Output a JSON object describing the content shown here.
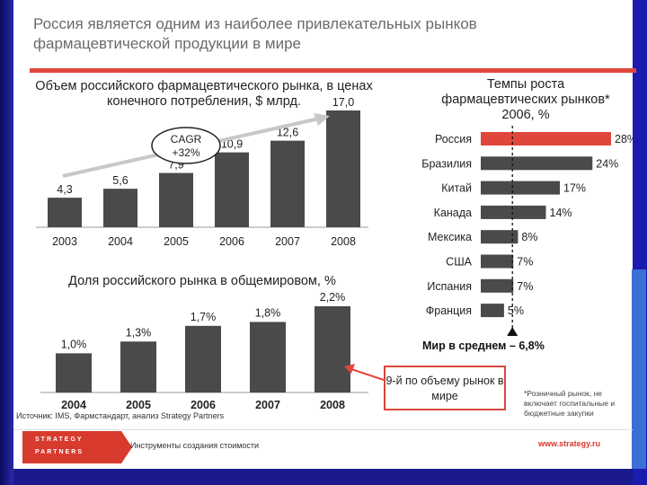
{
  "slide": {
    "title": "Россия является одним из наиболее привлекательных рынков фармацевтической продукции в мире",
    "source": "Источник: IMS, Фармстандарт, анализ Strategy Partners",
    "footnote": "*Розничный рынок, не включает госпитальные и бюджетные закупки",
    "footer_text": "Инструменты создания стоимости",
    "footer_url": "www.strategy.ru",
    "logo_line1": "STRATEGY",
    "logo_line2": "PARTNERS",
    "cagr": "CAGR +32%",
    "callout": "9-й по объему рынок в мире",
    "world_avg": "Мир в среднем – 6,8%",
    "colors": {
      "bar": "#4a4a4a",
      "accent": "#e0473c",
      "text": "#222222"
    }
  },
  "chart_data": [
    {
      "type": "bar",
      "title": "Объем российского фармацевтического рынка, в ценах конечного потребления, $ млрд.",
      "categories": [
        "2003",
        "2004",
        "2005",
        "2006",
        "2007",
        "2008"
      ],
      "values": [
        4.3,
        5.6,
        7.9,
        10.9,
        12.6,
        17.0
      ],
      "labels": [
        "4,3",
        "5,6",
        "7,9",
        "10,9",
        "12,6",
        "17,0"
      ],
      "ylim": [
        0,
        17
      ]
    },
    {
      "type": "bar",
      "title": "Доля российского рынка в общемировом, %",
      "categories": [
        "2004",
        "2005",
        "2006",
        "2007",
        "2008"
      ],
      "values": [
        1.0,
        1.3,
        1.7,
        1.8,
        2.2
      ],
      "labels": [
        "1,0%",
        "1,3%",
        "1,7%",
        "1,8%",
        "2,2%"
      ],
      "ylim": [
        0,
        2.2
      ]
    },
    {
      "type": "bar",
      "orientation": "horizontal",
      "title": "Темпы роста фармацевтических рынков* 2006, %",
      "categories": [
        "Россия",
        "Бразилия",
        "Китай",
        "Канада",
        "Мексика",
        "США",
        "Испания",
        "Франция"
      ],
      "values": [
        28,
        24,
        17,
        14,
        8,
        7,
        7,
        5
      ],
      "labels": [
        "28%",
        "24%",
        "17%",
        "14%",
        "8%",
        "7%",
        "7%",
        "5%"
      ],
      "reference_line": 6.8,
      "xlim": [
        0,
        28
      ]
    }
  ]
}
